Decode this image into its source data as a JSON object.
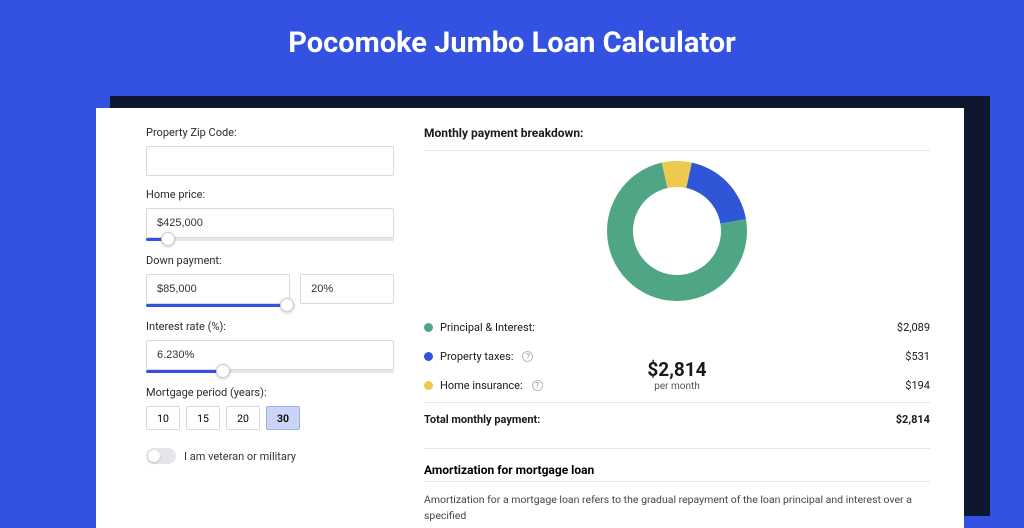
{
  "page": {
    "title": "Pocomoke Jumbo Loan Calculator",
    "bg_color": "#3452e1",
    "shadow_color": "#0d1730",
    "card_bg": "#ffffff"
  },
  "form": {
    "zip": {
      "label": "Property Zip Code:",
      "value": ""
    },
    "home_price": {
      "label": "Home price:",
      "value": "$425,000",
      "slider_pct": 9
    },
    "down_payment": {
      "label": "Down payment:",
      "value": "$85,000",
      "pct_value": "20%",
      "slider_pct": 20
    },
    "interest_rate": {
      "label": "Interest rate (%):",
      "value": "6.230%",
      "slider_pct": 31
    },
    "mortgage_period": {
      "label": "Mortgage period (years):",
      "options": [
        "10",
        "15",
        "20",
        "30"
      ],
      "active_index": 3
    },
    "veteran": {
      "label": "I am veteran or military",
      "on": false
    }
  },
  "breakdown": {
    "heading": "Monthly payment breakdown:",
    "donut": {
      "amount": "$2,814",
      "sub": "per month",
      "slices": [
        {
          "label": "Principal & Interest",
          "value": 2089,
          "frac": 0.742,
          "color": "#4ea685"
        },
        {
          "label": "Property taxes",
          "value": 531,
          "frac": 0.189,
          "color": "#2e56d6"
        },
        {
          "label": "Home insurance",
          "value": 194,
          "frac": 0.069,
          "color": "#edc94f"
        }
      ],
      "inner_radius": 44,
      "outer_radius": 70
    },
    "legend": {
      "items": [
        {
          "label": "Principal & Interest:",
          "value": "$2,089",
          "color": "#4ea685",
          "info": false
        },
        {
          "label": "Property taxes:",
          "value": "$531",
          "color": "#2e56d6",
          "info": true
        },
        {
          "label": "Home insurance:",
          "value": "$194",
          "color": "#edc94f",
          "info": true
        }
      ],
      "total": {
        "label": "Total monthly payment:",
        "value": "$2,814"
      }
    }
  },
  "amortization": {
    "heading": "Amortization for mortgage loan",
    "text": "Amortization for a mortgage loan refers to the gradual repayment of the loan principal and interest over a specified"
  }
}
